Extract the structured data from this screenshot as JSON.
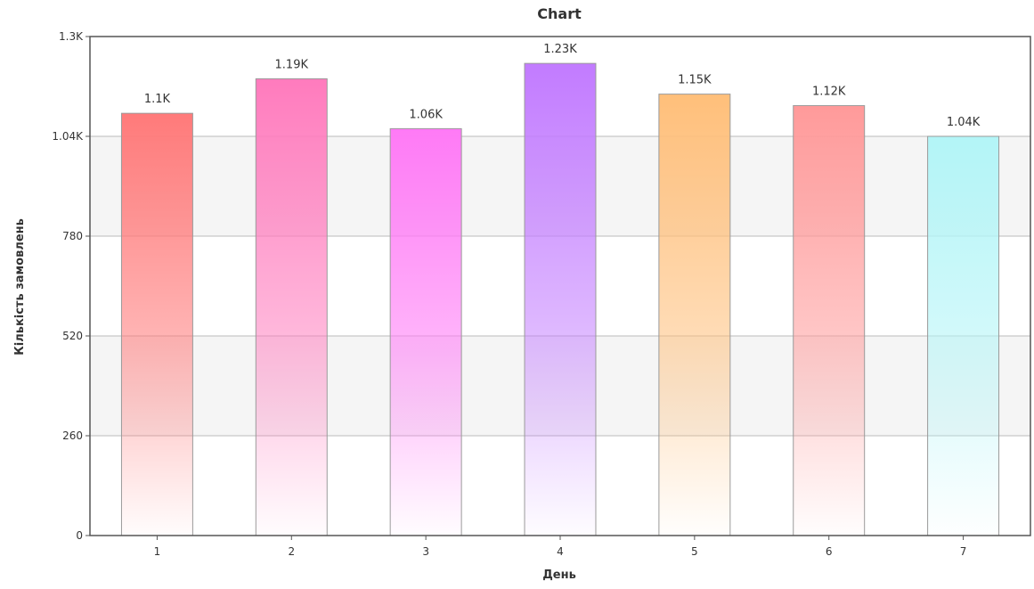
{
  "chart_data": {
    "type": "bar",
    "title": "Chart",
    "xlabel": "День",
    "ylabel": "Кількість замовлень",
    "categories": [
      "1",
      "2",
      "3",
      "4",
      "5",
      "6",
      "7"
    ],
    "values": [
      1100,
      1190,
      1060,
      1230,
      1150,
      1120,
      1040
    ],
    "data_labels": [
      "1.1K",
      "1.19K",
      "1.06K",
      "1.23K",
      "1.15K",
      "1.12K",
      "1.04K"
    ],
    "y_ticks": [
      {
        "value": 0,
        "label": "0"
      },
      {
        "value": 260,
        "label": "260"
      },
      {
        "value": 520,
        "label": "520"
      },
      {
        "value": 780,
        "label": "780"
      },
      {
        "value": 1040,
        "label": "1.04K"
      },
      {
        "value": 1300,
        "label": "1.3K"
      }
    ],
    "ylim": [
      0,
      1300
    ],
    "grid": true,
    "legend": "none",
    "bar_colors": [
      "#ff7a7a",
      "#ff7bbd",
      "#ff7af6",
      "#c27bff",
      "#ffbf7a",
      "#ff9a9a",
      "#b3f5f7"
    ],
    "band_color": "#f5f5f5",
    "grid_color": "#bbbbbb",
    "frame_color": "#555555"
  }
}
